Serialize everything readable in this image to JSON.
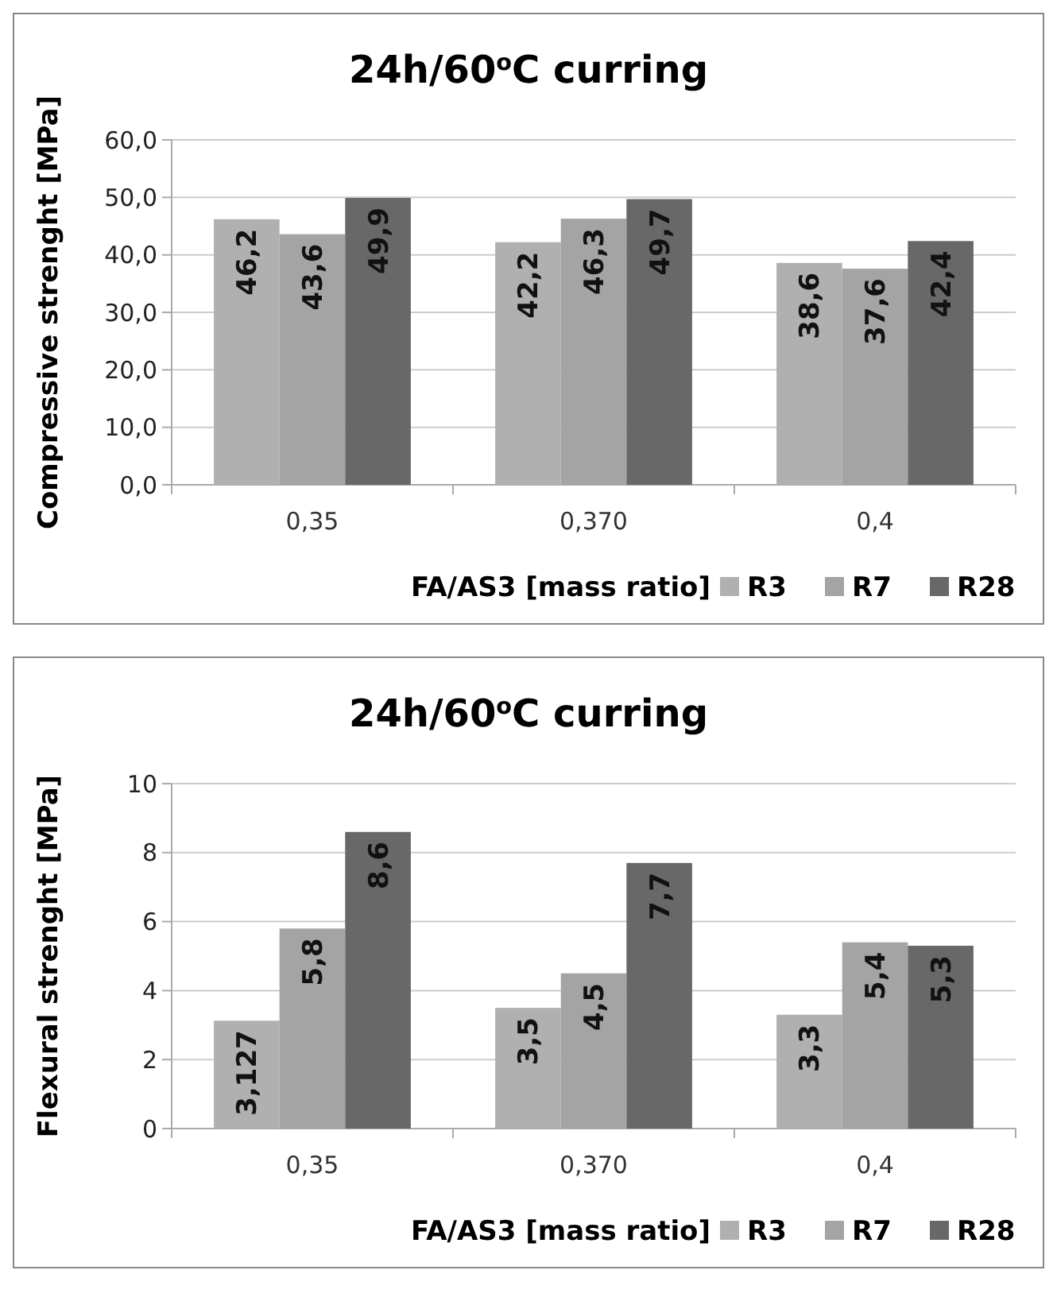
{
  "chart_data": [
    {
      "type": "bar",
      "title": "24h/60$^{o}$C curring",
      "ylabel": "Compressive strenght [MPa]",
      "xlabel": "FA/AS3 [mass ratio]",
      "categories": [
        "0,35",
        "0,370",
        "0,4"
      ],
      "ylim": [
        0,
        60
      ],
      "yticks": [
        {
          "value": 0,
          "label": "0,0"
        },
        {
          "value": 10,
          "label": "10,0"
        },
        {
          "value": 20,
          "label": "20,0"
        },
        {
          "value": 30,
          "label": "30,0"
        },
        {
          "value": 40,
          "label": "40,0"
        },
        {
          "value": 50,
          "label": "50,0"
        },
        {
          "value": 60,
          "label": "60,0"
        }
      ],
      "grid": "y",
      "legend": "bottom right",
      "series": [
        {
          "name": "R3",
          "color": "#b0b0b0",
          "values": [
            46.2,
            42.2,
            38.6
          ],
          "value_labels": [
            "46,2",
            "42,2",
            "38,6"
          ]
        },
        {
          "name": "R7",
          "color": "#a4a4a4",
          "values": [
            43.6,
            46.3,
            37.6
          ],
          "value_labels": [
            "43,6",
            "46,3",
            "37,6"
          ]
        },
        {
          "name": "R28",
          "color": "#686868",
          "values": [
            49.9,
            49.7,
            42.4
          ],
          "value_labels": [
            "49,9",
            "49,7",
            "42,4"
          ]
        }
      ]
    },
    {
      "type": "bar",
      "title": "24h/60$^{o}$C curring",
      "ylabel": "Flexural strenght [MPa]",
      "xlabel": "FA/AS3 [mass ratio]",
      "categories": [
        "0,35",
        "0,370",
        "0,4"
      ],
      "ylim": [
        0,
        10
      ],
      "yticks": [
        0,
        2,
        4,
        6,
        8,
        10
      ],
      "grid": "y",
      "legend": "bottom right",
      "series": [
        {
          "name": "R3",
          "color": "#b0b0b0",
          "values": [
            3.127,
            3.5,
            3.3
          ],
          "value_labels": [
            "3,127",
            "3,5",
            "3,3"
          ]
        },
        {
          "name": "R7",
          "color": "#a4a4a4",
          "values": [
            5.8,
            4.5,
            5.4
          ],
          "value_labels": [
            "5,8",
            "4,5",
            "5,4"
          ]
        },
        {
          "name": "R28",
          "color": "#686868",
          "values": [
            8.6,
            7.7,
            5.3
          ],
          "value_labels": [
            "8,6",
            "7,7",
            "5,3"
          ]
        }
      ]
    }
  ]
}
